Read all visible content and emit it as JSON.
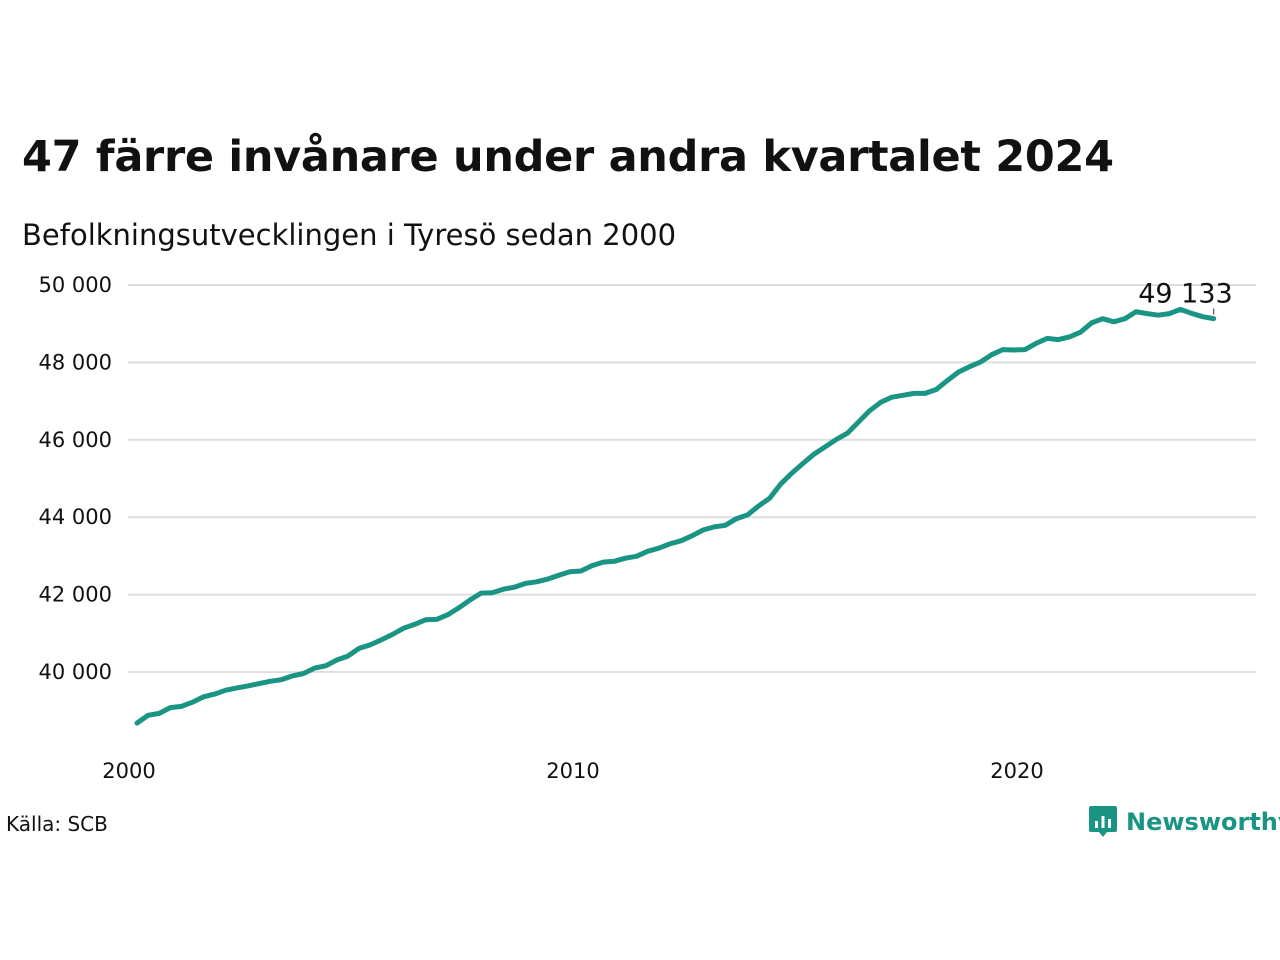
{
  "title": "47 färre invånare under andra kvartalet 2024",
  "subtitle": "Befolkningsutvecklingen i Tyresö sedan 2000",
  "source": "Källa: SCB",
  "brand": {
    "name": "Newsworthy",
    "color": "#1a9483"
  },
  "chart_data": {
    "type": "line",
    "title": "47 färre invånare under andra kvartalet 2024",
    "subtitle": "Befolkningsutvecklingen i Tyresö sedan 2000",
    "xlabel": "",
    "ylabel": "",
    "xlim": [
      2000,
      2024.5
    ],
    "ylim": [
      38000,
      50000
    ],
    "x_ticks": [
      2000,
      2010,
      2020
    ],
    "x_tick_labels": [
      "2000",
      "2010",
      "2020"
    ],
    "y_ticks": [
      40000,
      42000,
      44000,
      46000,
      48000,
      50000
    ],
    "y_tick_labels": [
      "40 000",
      "42 000",
      "44 000",
      "46 000",
      "48 000",
      "50 000"
    ],
    "grid": "horizontal",
    "line_color": "#1a9483",
    "end_label": "49 133",
    "series": [
      {
        "color": "#1a9483",
        "x": [
          2000.0,
          2000.25,
          2000.5,
          2000.75,
          2001.0,
          2001.25,
          2001.5,
          2001.75,
          2002.0,
          2002.25,
          2002.5,
          2002.75,
          2003.0,
          2003.25,
          2003.5,
          2003.75,
          2004.0,
          2004.25,
          2004.5,
          2004.75,
          2005.0,
          2005.25,
          2005.5,
          2005.75,
          2006.0,
          2006.25,
          2006.5,
          2006.75,
          2007.0,
          2007.25,
          2007.5,
          2007.75,
          2008.0,
          2008.25,
          2008.5,
          2008.75,
          2009.0,
          2009.25,
          2009.5,
          2009.75,
          2010.0,
          2010.25,
          2010.5,
          2010.75,
          2011.0,
          2011.25,
          2011.5,
          2011.75,
          2012.0,
          2012.25,
          2012.5,
          2012.75,
          2013.0,
          2013.25,
          2013.5,
          2013.75,
          2014.0,
          2014.25,
          2014.5,
          2014.75,
          2015.0,
          2015.25,
          2015.5,
          2015.75,
          2016.0,
          2016.25,
          2016.5,
          2016.75,
          2017.0,
          2017.25,
          2017.5,
          2017.75,
          2018.0,
          2018.25,
          2018.5,
          2018.75,
          2019.0,
          2019.25,
          2019.5,
          2019.75,
          2020.0,
          2020.25,
          2020.5,
          2020.75,
          2021.0,
          2021.25,
          2021.5,
          2021.75,
          2022.0,
          2022.25,
          2022.5,
          2022.75,
          2023.0,
          2023.25,
          2023.5,
          2023.75,
          2024.0,
          2024.25
        ],
        "values": [
          38680,
          38880,
          38930,
          39080,
          39110,
          39220,
          39360,
          39430,
          39530,
          39590,
          39640,
          39700,
          39760,
          39800,
          39900,
          39960,
          40100,
          40160,
          40310,
          40410,
          40610,
          40700,
          40830,
          40970,
          41130,
          41230,
          41350,
          41360,
          41480,
          41660,
          41860,
          42040,
          42050,
          42140,
          42190,
          42290,
          42330,
          42400,
          42500,
          42590,
          42610,
          42750,
          42840,
          42860,
          42940,
          42990,
          43120,
          43200,
          43310,
          43390,
          43520,
          43670,
          43750,
          43790,
          43960,
          44060,
          44290,
          44490,
          44860,
          45140,
          45390,
          45630,
          45820,
          46010,
          46170,
          46460,
          46750,
          46970,
          47100,
          47150,
          47200,
          47200,
          47300,
          47530,
          47750,
          47890,
          48010,
          48200,
          48330,
          48320,
          48330,
          48490,
          48620,
          48590,
          48660,
          48780,
          49020,
          49130,
          49050,
          49130,
          49310,
          49260,
          49220,
          49260,
          49370,
          49270,
          49180,
          49133
        ]
      }
    ]
  }
}
